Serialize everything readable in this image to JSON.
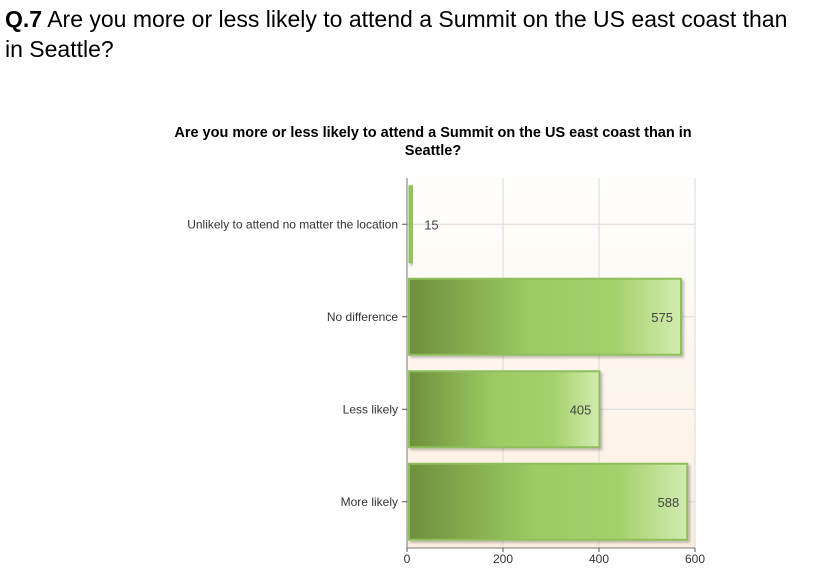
{
  "question": {
    "number": "Q.7",
    "text": "Are you more or less likely to attend a Summit on the US east coast than in Seattle?"
  },
  "chart_data": {
    "type": "bar",
    "orientation": "horizontal",
    "title": "Are you more or less likely to attend a Summit on the US east coast than in Seattle?",
    "xlabel": "",
    "ylabel": "",
    "categories": [
      "Unlikely to attend no matter the location",
      "No difference",
      "Less likely",
      "More likely"
    ],
    "values": [
      15,
      575,
      405,
      588
    ],
    "xlim": [
      0,
      600
    ],
    "xticks": [
      0,
      200,
      400,
      600
    ],
    "grid": true,
    "legend": "none",
    "colors": {
      "bar_dark": "#6e8f3c",
      "bar_mid": "#9ccb63",
      "bar_light": "#d2ecb0",
      "bar_border": "#8fbf5c",
      "plot_bg_top": "#fffefc",
      "plot_bg_bottom": "#fcefe1",
      "grid": "#d9d9d9"
    }
  }
}
